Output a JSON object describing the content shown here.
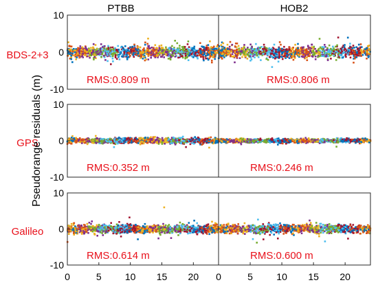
{
  "chart_data": {
    "type": "scatter",
    "ylabel": "Pseudorange residuals (m)",
    "columns": [
      "PTBB",
      "HOB2"
    ],
    "rows": [
      {
        "label": "BDS-2+3",
        "rms": [
          "RMS:0.809 m",
          "RMS:0.806 m"
        ],
        "spread_m": [
          0.81,
          0.81
        ]
      },
      {
        "label": "GPS",
        "rms": [
          "RMS:0.352 m",
          "RMS:0.246 m"
        ],
        "spread_m": [
          0.35,
          0.25
        ]
      },
      {
        "label": "Galileo",
        "rms": [
          "RMS:0.614 m",
          "RMS:0.600 m"
        ],
        "spread_m": [
          0.61,
          0.6
        ]
      }
    ],
    "ylim": [
      -10,
      10
    ],
    "yticks": [
      "10",
      "0",
      "-10"
    ],
    "xlim": [
      0,
      24
    ],
    "xticks": [
      "0",
      "5",
      "10",
      "15",
      "20"
    ],
    "series_colors": [
      "#0072BD",
      "#D95319",
      "#EDB120",
      "#7E2F8E",
      "#77AC30",
      "#4DBEEE",
      "#A2142F"
    ],
    "label_color": "#e8101a"
  }
}
